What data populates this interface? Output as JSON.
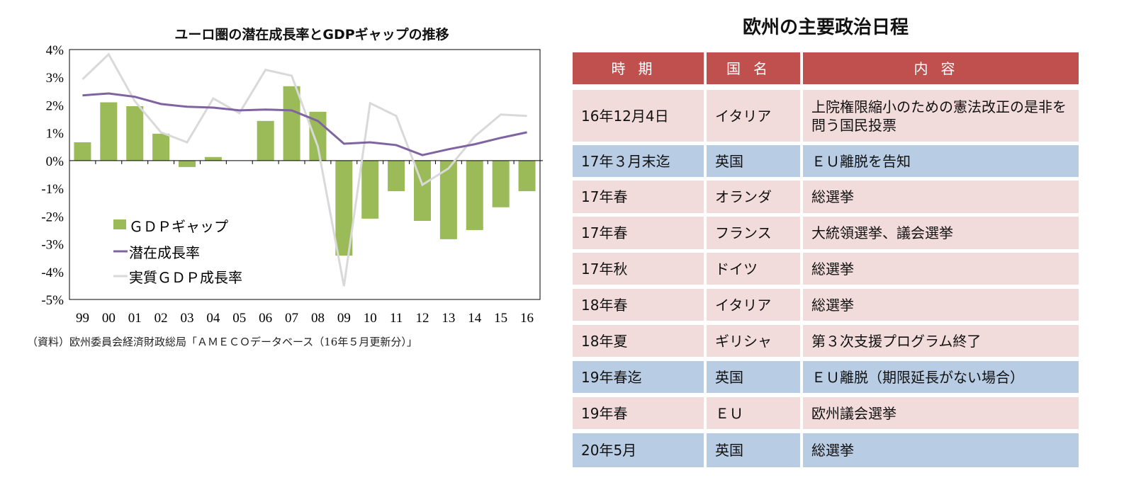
{
  "chart_data": {
    "type": "bar+line",
    "title": "ユーロ圏の潜在成長率とGDPギャップの推移",
    "categories": [
      "99",
      "00",
      "01",
      "02",
      "03",
      "04",
      "05",
      "06",
      "07",
      "08",
      "09",
      "10",
      "11",
      "12",
      "13",
      "14",
      "15",
      "16"
    ],
    "ylim": [
      -5,
      4
    ],
    "yticks": [
      "4%",
      "3%",
      "2%",
      "1%",
      "0%",
      "-1%",
      "-2%",
      "-3%",
      "-4%",
      "-5%"
    ],
    "legend_position": "bottom-left",
    "series": [
      {
        "name": "ＧＤＰギャップ",
        "type": "bar",
        "color": "#9bbb59",
        "values": [
          0.66,
          2.1,
          1.96,
          0.97,
          -0.23,
          0.13,
          0.0,
          1.43,
          2.68,
          1.76,
          -3.42,
          -2.09,
          -1.1,
          -2.17,
          -2.83,
          -2.5,
          -1.68,
          -1.1
        ]
      },
      {
        "name": "潜在成長率",
        "type": "line",
        "color": "#8064a2",
        "values": [
          2.35,
          2.42,
          2.3,
          2.04,
          1.94,
          1.91,
          1.81,
          1.84,
          1.81,
          1.43,
          0.61,
          0.66,
          0.56,
          0.2,
          0.41,
          0.59,
          0.82,
          1.02
        ]
      },
      {
        "name": "実質ＧＤＰ成長率",
        "type": "line",
        "color": "#d9d9d9",
        "values": [
          2.93,
          3.83,
          2.14,
          1.02,
          0.66,
          2.24,
          1.71,
          3.27,
          3.06,
          0.51,
          -4.52,
          2.07,
          1.61,
          -0.87,
          -0.28,
          0.87,
          1.66,
          1.61
        ]
      }
    ],
    "source": "（資料）欧州委員会経済財政総局「ＡＭＥＣＯデータベース（16年５月更新分）」"
  },
  "table": {
    "title": "欧州の主要政治日程",
    "headers": [
      "時期",
      "国名",
      "内容"
    ],
    "header_color": "#c0504d",
    "rows": [
      {
        "style": "pink",
        "cells": [
          "16年12月4日",
          "イタリア",
          "上院権限縮小のための憲法改正の是非を問う国民投票"
        ]
      },
      {
        "style": "blue",
        "cells": [
          "17年３月末迄",
          "英国",
          "ＥＵ離脱を告知"
        ]
      },
      {
        "style": "pink",
        "cells": [
          "17年春",
          "オランダ",
          "総選挙"
        ]
      },
      {
        "style": "pink",
        "cells": [
          "17年春",
          "フランス",
          "大統領選挙、議会選挙"
        ]
      },
      {
        "style": "pink",
        "cells": [
          "17年秋",
          "ドイツ",
          "総選挙"
        ]
      },
      {
        "style": "pink",
        "cells": [
          "18年春",
          "イタリア",
          "総選挙"
        ]
      },
      {
        "style": "pink",
        "cells": [
          "18年夏",
          "ギリシャ",
          "第３次支援プログラム終了"
        ]
      },
      {
        "style": "blue",
        "cells": [
          "19年春迄",
          "英国",
          "ＥＵ離脱（期限延長がない場合）"
        ]
      },
      {
        "style": "pink",
        "cells": [
          "19年春",
          "ＥＵ",
          "欧州議会選挙"
        ]
      },
      {
        "style": "blue",
        "cells": [
          "20年5月",
          "英国",
          "総選挙"
        ]
      }
    ]
  }
}
